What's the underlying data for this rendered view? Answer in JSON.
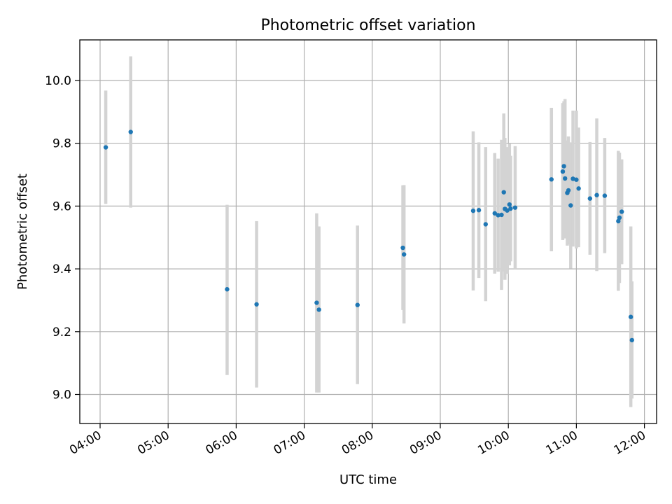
{
  "chart_data": {
    "type": "scatter",
    "title": "Photometric offset variation",
    "xlabel": "UTC time",
    "ylabel": "Photometric offset",
    "x_tick_labels": [
      "04:00",
      "05:00",
      "06:00",
      "07:00",
      "08:00",
      "09:00",
      "10:00",
      "11:00",
      "12:00"
    ],
    "y_ticks": [
      9.0,
      9.2,
      9.4,
      9.6,
      9.8,
      10.0
    ],
    "y_tick_labels": [
      "9.0",
      "9.2",
      "9.4",
      "9.6",
      "9.8",
      "10.0"
    ],
    "grid": true,
    "colors": {
      "marker": "#1f77b4",
      "error_bar": "#d3d3d3",
      "grid": "#b0b0b0"
    },
    "points": [
      {
        "x": "04:05",
        "y": 9.787,
        "lo": 9.607,
        "hi": 9.968
      },
      {
        "x": "04:27",
        "y": 9.836,
        "lo": 9.595,
        "hi": 10.077
      },
      {
        "x": "05:52",
        "y": 9.335,
        "lo": 9.062,
        "hi": 9.604
      },
      {
        "x": "06:18",
        "y": 9.287,
        "lo": 9.022,
        "hi": 9.552
      },
      {
        "x": "07:11",
        "y": 9.292,
        "lo": 9.006,
        "hi": 9.577
      },
      {
        "x": "07:13",
        "y": 9.27,
        "lo": 9.006,
        "hi": 9.535
      },
      {
        "x": "07:47",
        "y": 9.285,
        "lo": 9.033,
        "hi": 9.538
      },
      {
        "x": "08:27",
        "y": 9.467,
        "lo": 9.269,
        "hi": 9.666
      },
      {
        "x": "08:28",
        "y": 9.446,
        "lo": 9.226,
        "hi": 9.667
      },
      {
        "x": "09:29",
        "y": 9.585,
        "lo": 9.331,
        "hi": 9.838
      },
      {
        "x": "09:34",
        "y": 9.587,
        "lo": 9.371,
        "hi": 9.803
      },
      {
        "x": "09:40",
        "y": 9.542,
        "lo": 9.297,
        "hi": 9.788
      },
      {
        "x": "09:48",
        "y": 9.577,
        "lo": 9.385,
        "hi": 9.769
      },
      {
        "x": "09:51",
        "y": 9.571,
        "lo": 9.391,
        "hi": 9.751
      },
      {
        "x": "09:54",
        "y": 9.572,
        "lo": 9.333,
        "hi": 9.811
      },
      {
        "x": "09:56",
        "y": 9.644,
        "lo": 9.392,
        "hi": 9.895
      },
      {
        "x": "09:57",
        "y": 9.591,
        "lo": 9.365,
        "hi": 9.817
      },
      {
        "x": "09:59",
        "y": 9.586,
        "lo": 9.384,
        "hi": 9.788
      },
      {
        "x": "10:01",
        "y": 9.605,
        "lo": 9.411,
        "hi": 9.799
      },
      {
        "x": "10:02",
        "y": 9.592,
        "lo": 9.424,
        "hi": 9.76
      },
      {
        "x": "10:06",
        "y": 9.595,
        "lo": 9.4,
        "hi": 9.791
      },
      {
        "x": "10:38",
        "y": 9.685,
        "lo": 9.456,
        "hi": 9.913
      },
      {
        "x": "10:48",
        "y": 9.71,
        "lo": 9.492,
        "hi": 9.928
      },
      {
        "x": "10:49",
        "y": 9.727,
        "lo": 9.521,
        "hi": 9.934
      },
      {
        "x": "10:50",
        "y": 9.688,
        "lo": 9.497,
        "hi": 9.941
      },
      {
        "x": "10:52",
        "y": 9.642,
        "lo": 9.474,
        "hi": 9.809
      },
      {
        "x": "10:53",
        "y": 9.65,
        "lo": 9.478,
        "hi": 9.822
      },
      {
        "x": "10:55",
        "y": 9.602,
        "lo": 9.401,
        "hi": 9.803
      },
      {
        "x": "10:57",
        "y": 9.687,
        "lo": 9.471,
        "hi": 9.904
      },
      {
        "x": "11:00",
        "y": 9.684,
        "lo": 9.465,
        "hi": 9.904
      },
      {
        "x": "11:02",
        "y": 9.656,
        "lo": 9.469,
        "hi": 9.85
      },
      {
        "x": "11:12",
        "y": 9.624,
        "lo": 9.445,
        "hi": 9.804
      },
      {
        "x": "11:18",
        "y": 9.635,
        "lo": 9.393,
        "hi": 9.879
      },
      {
        "x": "11:25",
        "y": 9.633,
        "lo": 9.45,
        "hi": 9.817
      },
      {
        "x": "11:37",
        "y": 9.552,
        "lo": 9.33,
        "hi": 9.776
      },
      {
        "x": "11:38",
        "y": 9.563,
        "lo": 9.355,
        "hi": 9.77
      },
      {
        "x": "11:40",
        "y": 9.582,
        "lo": 9.415,
        "hi": 9.749
      },
      {
        "x": "11:48",
        "y": 9.247,
        "lo": 8.96,
        "hi": 9.535
      },
      {
        "x": "11:49",
        "y": 9.173,
        "lo": 8.987,
        "hi": 9.36
      }
    ]
  }
}
